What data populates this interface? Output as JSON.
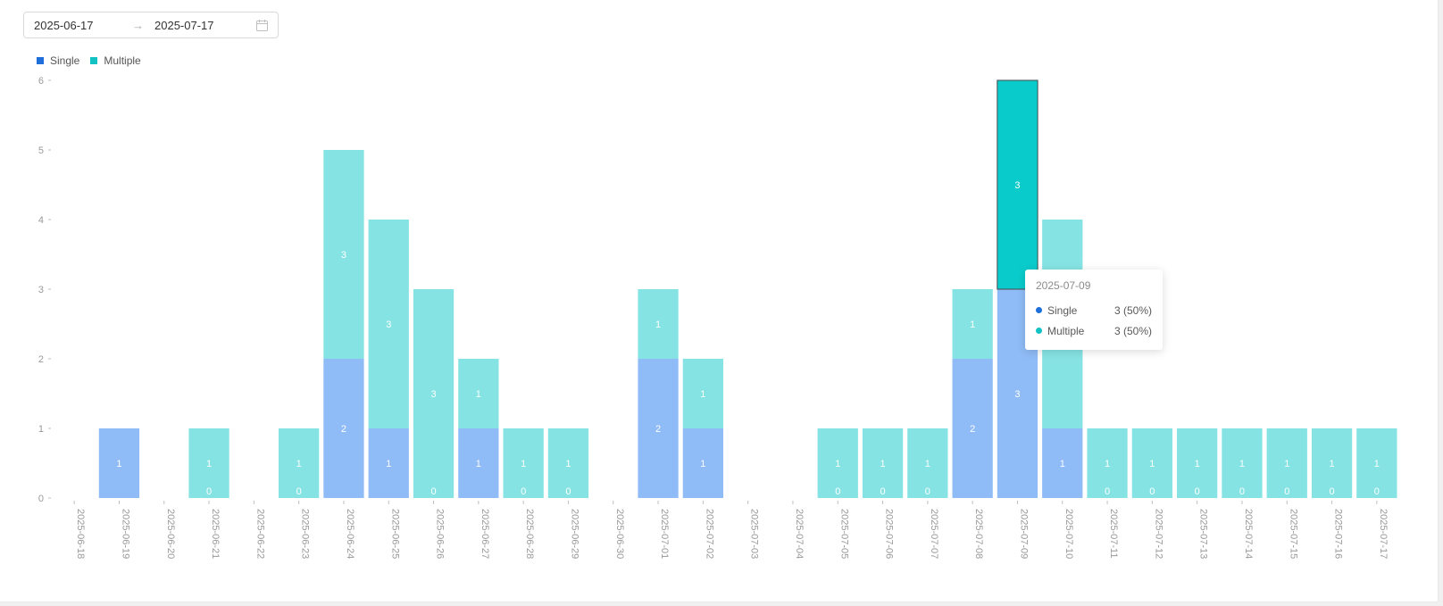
{
  "date_range": {
    "start": "2025-06-17",
    "end": "2025-07-17",
    "separator": "→",
    "calendar_icon": "calendar-icon"
  },
  "legend": [
    {
      "label": "Single",
      "color": "#1e6fd9"
    },
    {
      "label": "Multiple",
      "color": "#13c2c2"
    }
  ],
  "colors": {
    "single_fill": "#8fbbf6",
    "multiple_fill": "#86e3e3",
    "multiple_active": "#0acbcb",
    "axis_text": "#999999",
    "label_text": "#ffffff"
  },
  "chart_data": {
    "type": "bar",
    "stacked": true,
    "categories": [
      "2025-06-18",
      "2025-06-19",
      "2025-06-20",
      "2025-06-21",
      "2025-06-22",
      "2025-06-23",
      "2025-06-24",
      "2025-06-25",
      "2025-06-26",
      "2025-06-27",
      "2025-06-28",
      "2025-06-29",
      "2025-06-30",
      "2025-07-01",
      "2025-07-02",
      "2025-07-03",
      "2025-07-04",
      "2025-07-05",
      "2025-07-06",
      "2025-07-07",
      "2025-07-08",
      "2025-07-09",
      "2025-07-10",
      "2025-07-11",
      "2025-07-12",
      "2025-07-13",
      "2025-07-14",
      "2025-07-15",
      "2025-07-16",
      "2025-07-17"
    ],
    "series": [
      {
        "name": "Single",
        "values": [
          null,
          1,
          null,
          0,
          null,
          0,
          2,
          1,
          0,
          1,
          0,
          0,
          null,
          2,
          1,
          null,
          null,
          0,
          0,
          0,
          2,
          3,
          1,
          0,
          0,
          0,
          0,
          0,
          0,
          0
        ]
      },
      {
        "name": "Multiple",
        "values": [
          null,
          null,
          null,
          1,
          null,
          1,
          3,
          3,
          3,
          1,
          1,
          1,
          null,
          1,
          1,
          null,
          null,
          1,
          1,
          1,
          1,
          3,
          3,
          1,
          1,
          1,
          1,
          1,
          1,
          1
        ]
      }
    ],
    "yticks": [
      0,
      1,
      2,
      3,
      4,
      5,
      6
    ],
    "ylim": [
      0,
      6
    ],
    "legend_position": "top-left",
    "highlighted_category": "2025-07-09"
  },
  "tooltip": {
    "title": "2025-07-09",
    "rows": [
      {
        "name": "Single",
        "value": "3 (50%)",
        "color": "#1e6fd9"
      },
      {
        "name": "Multiple",
        "value": "3 (50%)",
        "color": "#13c2c2"
      }
    ]
  }
}
